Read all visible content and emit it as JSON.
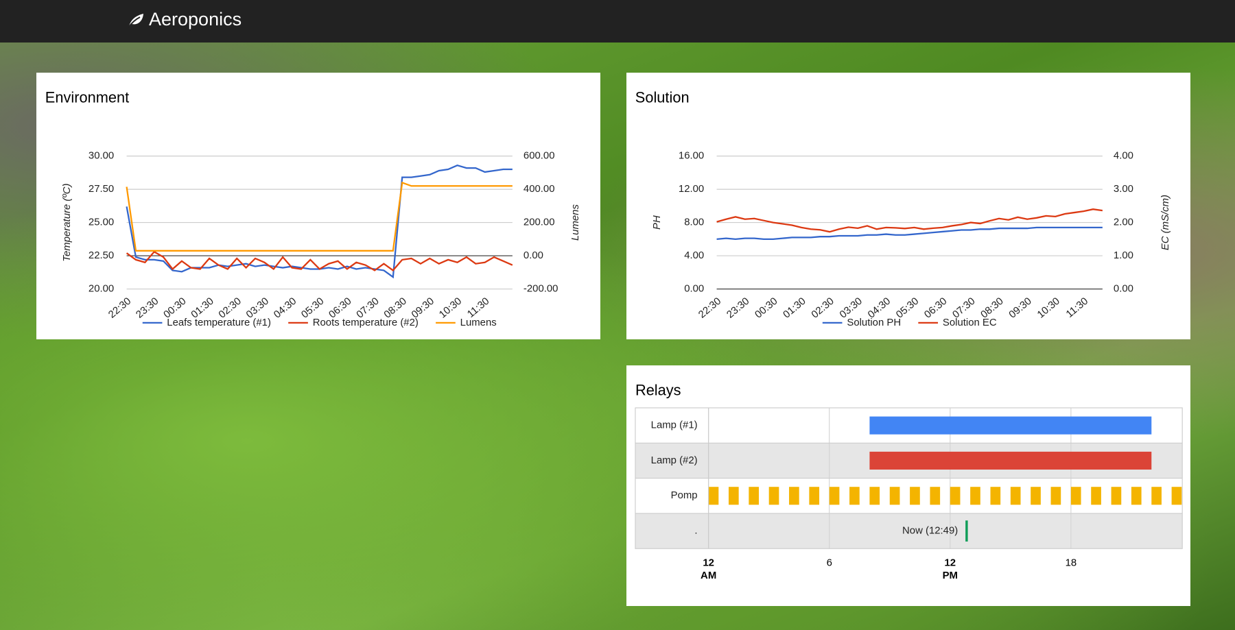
{
  "navbar": {
    "brand": "Aeroponics"
  },
  "chart_data": [
    {
      "type": "line",
      "title": "Environment",
      "y_label": "Temperature (ºC)",
      "y2_label": "Lumens",
      "categories": [
        "22:30",
        null,
        null,
        "23:30",
        null,
        null,
        "00:30",
        null,
        null,
        "01:30",
        null,
        null,
        "02:30",
        null,
        null,
        "03:30",
        null,
        null,
        "04:30",
        null,
        null,
        "05:30",
        null,
        null,
        "06:30",
        null,
        null,
        "07:30",
        null,
        null,
        "08:30",
        null,
        null,
        "09:30",
        null,
        null,
        "10:30",
        null,
        null,
        "11:30",
        null,
        null,
        null
      ],
      "ylim": [
        20,
        30
      ],
      "yticks": [
        {
          "value": 20,
          "label": "20.00"
        },
        {
          "value": 22.5,
          "label": "22.50"
        },
        {
          "value": 25,
          "label": "25.00"
        },
        {
          "value": 27.5,
          "label": "27.50"
        },
        {
          "value": 30,
          "label": "30.00"
        }
      ],
      "y2lim": [
        -200,
        600
      ],
      "y2ticks": [
        {
          "value": -200,
          "label": "-200.00"
        },
        {
          "value": 0,
          "label": "0.00"
        },
        {
          "value": 200,
          "label": "200.00"
        },
        {
          "value": 400,
          "label": "400.00"
        },
        {
          "value": 600,
          "label": "600.00"
        }
      ],
      "grid": true,
      "series": [
        {
          "name": "Leafs temperature (#1)",
          "color": "#3366cc",
          "values": [
            26.2,
            22.4,
            22.2,
            22.2,
            22.1,
            21.4,
            21.3,
            21.6,
            21.6,
            21.6,
            21.8,
            21.7,
            21.8,
            21.9,
            21.7,
            21.8,
            21.7,
            21.6,
            21.7,
            21.6,
            21.5,
            21.5,
            21.6,
            21.5,
            21.7,
            21.5,
            21.6,
            21.5,
            21.4,
            20.9,
            28.4,
            28.4,
            28.5,
            28.6,
            28.9,
            29.0,
            29.3,
            29.1,
            29.1,
            28.8,
            28.9,
            29.0,
            29.0
          ]
        },
        {
          "name": "Roots temperature (#2)",
          "color": "#dc3912",
          "values": [
            22.7,
            22.2,
            22.0,
            22.8,
            22.4,
            21.5,
            22.1,
            21.6,
            21.5,
            22.3,
            21.8,
            21.5,
            22.3,
            21.6,
            22.3,
            22.0,
            21.5,
            22.4,
            21.6,
            21.5,
            22.2,
            21.5,
            21.9,
            22.1,
            21.5,
            22.0,
            21.8,
            21.4,
            21.9,
            21.4,
            22.2,
            22.3,
            21.9,
            22.3,
            21.9,
            22.2,
            22.0,
            22.4,
            21.9,
            22.0,
            22.4,
            22.1,
            21.8
          ]
        },
        {
          "name": "Lumens",
          "color": "#ff9900",
          "axis": "y2",
          "values": [
            415,
            30,
            30,
            30,
            30,
            30,
            30,
            30,
            30,
            30,
            30,
            30,
            30,
            30,
            30,
            30,
            30,
            30,
            30,
            30,
            30,
            30,
            30,
            30,
            30,
            30,
            30,
            30,
            30,
            30,
            440,
            420,
            420,
            420,
            420,
            420,
            420,
            420,
            420,
            420,
            420,
            420,
            420
          ]
        }
      ]
    },
    {
      "type": "line",
      "title": "Solution",
      "y_label": "PH",
      "y2_label": "EC (mS/cm)",
      "categories": [
        "22:30",
        null,
        null,
        "23:30",
        null,
        null,
        "00:30",
        null,
        null,
        "01:30",
        null,
        null,
        "02:30",
        null,
        null,
        "03:30",
        null,
        null,
        "04:30",
        null,
        null,
        "05:30",
        null,
        null,
        "06:30",
        null,
        null,
        "07:30",
        null,
        null,
        "08:30",
        null,
        null,
        "09:30",
        null,
        null,
        "10:30",
        null,
        null,
        "11:30",
        null,
        null
      ],
      "ylim": [
        0,
        16
      ],
      "yticks": [
        {
          "value": 0,
          "label": "0.00"
        },
        {
          "value": 4,
          "label": "4.00"
        },
        {
          "value": 8,
          "label": "8.00"
        },
        {
          "value": 12,
          "label": "12.00"
        },
        {
          "value": 16,
          "label": "16.00"
        }
      ],
      "y2lim": [
        0,
        4
      ],
      "y2ticks": [
        {
          "value": 0,
          "label": "0.00"
        },
        {
          "value": 1,
          "label": "1.00"
        },
        {
          "value": 2,
          "label": "2.00"
        },
        {
          "value": 3,
          "label": "3.00"
        },
        {
          "value": 4,
          "label": "4.00"
        }
      ],
      "grid": true,
      "series": [
        {
          "name": "Solution PH",
          "color": "#3366cc",
          "values": [
            6.0,
            6.1,
            6.0,
            6.1,
            6.1,
            6.0,
            6.0,
            6.1,
            6.2,
            6.2,
            6.2,
            6.3,
            6.3,
            6.4,
            6.4,
            6.4,
            6.5,
            6.5,
            6.6,
            6.5,
            6.5,
            6.6,
            6.7,
            6.8,
            6.9,
            7.0,
            7.1,
            7.1,
            7.2,
            7.2,
            7.3,
            7.3,
            7.3,
            7.3,
            7.4,
            7.4,
            7.4,
            7.4,
            7.4,
            7.4,
            7.4,
            7.4
          ]
        },
        {
          "name": "Solution EC",
          "color": "#dc3912",
          "axis": "y2",
          "values": [
            2.02,
            2.1,
            2.17,
            2.1,
            2.12,
            2.06,
            2.0,
            1.96,
            1.92,
            1.85,
            1.8,
            1.78,
            1.72,
            1.8,
            1.86,
            1.83,
            1.9,
            1.8,
            1.85,
            1.84,
            1.82,
            1.85,
            1.8,
            1.83,
            1.85,
            1.9,
            1.94,
            2.0,
            1.97,
            2.05,
            2.12,
            2.08,
            2.16,
            2.1,
            2.14,
            2.2,
            2.18,
            2.26,
            2.3,
            2.34,
            2.4,
            2.36
          ]
        }
      ]
    },
    {
      "type": "timeline",
      "title": "Relays",
      "xlim": [
        0,
        23.53
      ],
      "xticks": [
        {
          "value": 0,
          "label": "12 AM",
          "bold": true
        },
        6,
        {
          "value": 12,
          "label": "12 PM",
          "bold": true
        },
        18
      ],
      "xtick_labels_plain": null,
      "rows": [
        {
          "name": "Lamp (#1)",
          "color": "#4285f4",
          "bars": [
            [
              8,
              22
            ]
          ]
        },
        {
          "name": "Lamp (#2)",
          "color": "#db4437",
          "bars": [
            [
              8,
              22
            ]
          ]
        },
        {
          "name": "Pomp",
          "color": "#f4b400",
          "bars": [
            [
              0,
              0.5
            ],
            [
              1,
              1.5
            ],
            [
              2,
              2.5
            ],
            [
              3,
              3.5
            ],
            [
              4,
              4.5
            ],
            [
              5,
              5.5
            ],
            [
              6,
              6.5
            ],
            [
              7,
              7.5
            ],
            [
              8,
              8.5
            ],
            [
              9,
              9.5
            ],
            [
              10,
              10.5
            ],
            [
              11,
              11.5
            ],
            [
              12,
              12.5
            ],
            [
              13,
              13.5
            ],
            [
              14,
              14.5
            ],
            [
              15,
              15.5
            ],
            [
              16,
              16.5
            ],
            [
              17,
              17.5
            ],
            [
              18,
              18.5
            ],
            [
              19,
              19.5
            ],
            [
              20,
              20.5
            ],
            [
              21,
              21.5
            ],
            [
              22,
              22.5
            ],
            [
              23,
              23.5
            ]
          ]
        },
        {
          "name": ".",
          "marker": {
            "label": "Now (12:49)",
            "value": 12.82,
            "color": "#0f9d58"
          }
        }
      ]
    }
  ]
}
